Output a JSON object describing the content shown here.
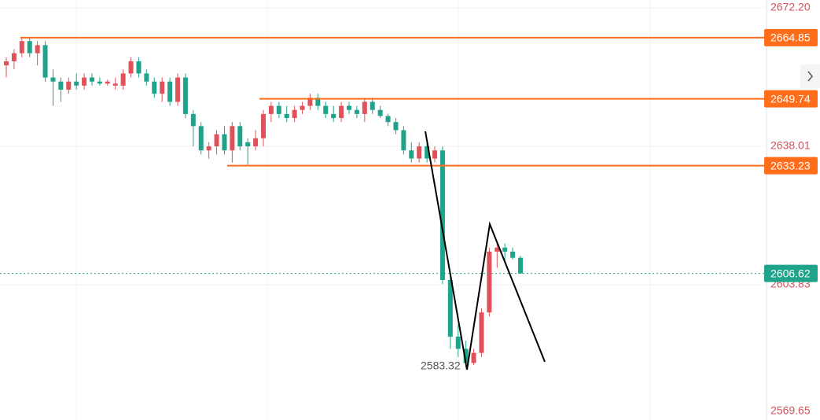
{
  "chart_data": {
    "type": "candlestick",
    "ylim": [
      2569.65,
      2672.2
    ],
    "yticks": [
      {
        "value": 2672.2,
        "label": "2672.20"
      },
      2638.01,
      2603.83,
      2569.65
    ],
    "up_color": "#e0525b",
    "down_color": "#1fa38a",
    "level_color": "#ff6d1a",
    "levels": [
      2664.85,
      2649.74,
      2633.23
    ],
    "last_price": 2606.62,
    "low_annotation_index": 59,
    "open": [
      2658,
      2659,
      2661,
      2664,
      2661,
      2663,
      2655,
      2654,
      2652,
      2654,
      2653,
      2655,
      2654,
      2653.5,
      2653,
      2653,
      2656,
      2659,
      2656,
      2654,
      2651,
      2654,
      2649,
      2655,
      2646,
      2643,
      2637,
      2638,
      2641,
      2637,
      2643,
      2639,
      2638,
      2640,
      2646,
      2648,
      2646,
      2645,
      2647,
      2648,
      2650,
      2648,
      2646,
      2645,
      2648,
      2647,
      2646,
      2649,
      2647,
      2645.5,
      2644,
      2642,
      2637,
      2635,
      2638,
      2635,
      2637,
      2605,
      2591,
      2588,
      2584.5,
      2587,
      2597,
      2612,
      2613,
      2612,
      2610.5
    ],
    "high": [
      2660,
      2662,
      2665,
      2665,
      2664,
      2664,
      2657,
      2655,
      2655,
      2656,
      2656,
      2656,
      2655,
      2654.5,
      2655,
      2657,
      2660,
      2660,
      2657,
      2655,
      2655,
      2655,
      2656,
      2656,
      2647,
      2644,
      2639,
      2642,
      2643,
      2644,
      2644,
      2640,
      2642,
      2647,
      2649,
      2649,
      2648,
      2648,
      2649,
      2651,
      2651,
      2649,
      2648,
      2649,
      2649,
      2648,
      2650,
      2650,
      2648,
      2646,
      2645,
      2643,
      2639,
      2639,
      2639,
      2638,
      2638,
      2606,
      2594,
      2590,
      2588,
      2598,
      2613,
      2614,
      2614,
      2613,
      2611
    ],
    "low": [
      2655,
      2657,
      2660,
      2660,
      2658,
      2654,
      2648,
      2649,
      2651,
      2652,
      2652,
      2653,
      2653,
      2653,
      2652,
      2652,
      2655,
      2655,
      2653,
      2650,
      2649,
      2648,
      2648,
      2645,
      2638,
      2636,
      2635,
      2636,
      2636,
      2634,
      2637,
      2633.5,
      2637,
      2638,
      2644,
      2645,
      2644,
      2644,
      2646,
      2647,
      2647,
      2645,
      2644,
      2644,
      2646,
      2645,
      2644,
      2646,
      2645,
      2643,
      2641,
      2636,
      2634,
      2634,
      2634,
      2634,
      2604,
      2588,
      2586,
      2583.32,
      2584,
      2586,
      2596,
      2608,
      2609,
      2610,
      2606.6
    ],
    "close": [
      2659,
      2661,
      2664,
      2661,
      2663,
      2655,
      2654,
      2652,
      2654,
      2653,
      2655,
      2654,
      2653.5,
      2654,
      2653.5,
      2656,
      2659,
      2656,
      2654,
      2651,
      2654,
      2649,
      2655,
      2646,
      2643,
      2637,
      2638,
      2641,
      2637,
      2643,
      2638,
      2638,
      2640,
      2646,
      2648,
      2646,
      2645,
      2647,
      2648,
      2650,
      2648,
      2646,
      2645,
      2648,
      2647,
      2646,
      2649,
      2647,
      2645.5,
      2644,
      2642,
      2637,
      2635,
      2638,
      2635,
      2637,
      2605,
      2591,
      2588,
      2584.5,
      2587,
      2597,
      2612,
      2613,
      2612,
      2610.5,
      2606.62
    ]
  }
}
